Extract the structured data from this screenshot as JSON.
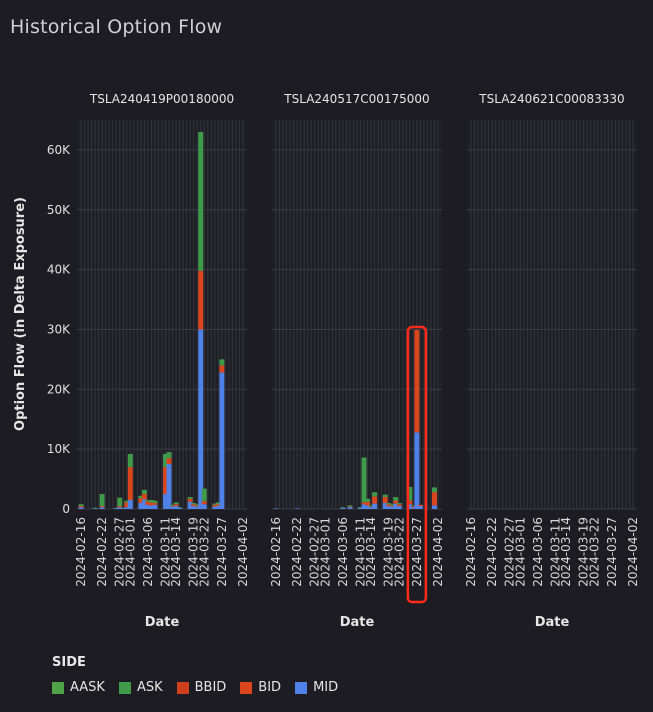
{
  "page": {
    "title": "Historical Option Flow"
  },
  "legend": {
    "title": "SIDE",
    "items": [
      {
        "label": "AASK",
        "color": "#4fa24a"
      },
      {
        "label": "ASK",
        "color": "#3f9a4a"
      },
      {
        "label": "BBID",
        "color": "#cf4020"
      },
      {
        "label": "BID",
        "color": "#d9461e"
      },
      {
        "label": "MID",
        "color": "#4f81e6"
      }
    ]
  },
  "chart_data": {
    "type": "bar",
    "stacked": true,
    "ylabel": "Option Flow (in Delta Exposure)",
    "xlabel": "Date",
    "ylim": [
      0,
      65000
    ],
    "yticks": [
      0,
      10000,
      20000,
      30000,
      40000,
      50000,
      60000
    ],
    "ytick_labels": [
      "0",
      "10K",
      "20K",
      "30K",
      "40K",
      "50K",
      "60K"
    ],
    "xtick_labels": [
      "2024-02-16",
      "2024-02-22",
      "2024-02-27",
      "2024-03-01",
      "2024-03-06",
      "2024-03-11",
      "2024-03-14",
      "2024-03-19",
      "2024-03-22",
      "2024-03-27",
      "2024-04-02"
    ],
    "grid": true,
    "legend_position": "bottom",
    "series_order": [
      "MID",
      "BID",
      "BBID",
      "ASK",
      "AASK"
    ],
    "colors": {
      "MID": "#4f81e6",
      "BID": "#d9461e",
      "BBID": "#cf4020",
      "ASK": "#3f9a4a",
      "AASK": "#4fa24a"
    },
    "panels": [
      {
        "title": "TSLA240419P00180000",
        "bars": [
          {
            "x": "2024-02-16",
            "MID": 300,
            "BID": 200,
            "ASK": 300
          },
          {
            "x": "2024-02-20",
            "MID": 100,
            "ASK": 100
          },
          {
            "x": "2024-02-22",
            "MID": 300,
            "BID": 200,
            "ASK": 2000
          },
          {
            "x": "2024-02-26",
            "MID": 100,
            "ASK": 100
          },
          {
            "x": "2024-02-27",
            "MID": 300,
            "BID": 200,
            "ASK": 1400
          },
          {
            "x": "2024-02-28",
            "MID": 100,
            "ASK": 100
          },
          {
            "x": "2024-02-29",
            "MID": 300,
            "BID": 800,
            "ASK": 300
          },
          {
            "x": "2024-03-01",
            "MID": 1500,
            "BID": 5500,
            "ASK": 2200
          },
          {
            "x": "2024-03-04",
            "MID": 1000,
            "BID": 800,
            "ASK": 400
          },
          {
            "x": "2024-03-05",
            "MID": 1600,
            "BID": 900,
            "ASK": 700
          },
          {
            "x": "2024-03-06",
            "MID": 700,
            "BID": 600,
            "ASK": 200
          },
          {
            "x": "2024-03-07",
            "MID": 600,
            "BID": 500,
            "ASK": 400
          },
          {
            "x": "2024-03-08",
            "MID": 700,
            "BID": 300,
            "ASK": 400
          },
          {
            "x": "2024-03-11",
            "MID": 2500,
            "BID": 4500,
            "ASK": 2200
          },
          {
            "x": "2024-03-12",
            "MID": 7500,
            "BID": 1000,
            "ASK": 1000
          },
          {
            "x": "2024-03-13",
            "MID": 400,
            "BID": 100,
            "ASK": 200
          },
          {
            "x": "2024-03-14",
            "MID": 500,
            "BID": 300,
            "ASK": 300
          },
          {
            "x": "2024-03-15",
            "MID": 200,
            "ASK": 100
          },
          {
            "x": "2024-03-18",
            "MID": 1200,
            "BID": 500,
            "ASK": 300
          },
          {
            "x": "2024-03-19",
            "MID": 500,
            "BID": 300,
            "ASK": 200
          },
          {
            "x": "2024-03-20",
            "MID": 400,
            "BID": 200,
            "ASK": 200
          },
          {
            "x": "2024-03-21",
            "MID": 30000,
            "BID": 9800,
            "ASK": 23200
          },
          {
            "x": "2024-03-22",
            "MID": 800,
            "BID": 500,
            "ASK": 2100
          },
          {
            "x": "2024-03-25",
            "MID": 400,
            "BID": 300,
            "ASK": 200
          },
          {
            "x": "2024-03-26",
            "MID": 500,
            "BID": 300,
            "ASK": 300
          },
          {
            "x": "2024-03-27",
            "MID": 22800,
            "BID": 1200,
            "ASK": 1000
          }
        ]
      },
      {
        "title": "TSLA240517C00175000",
        "bars": [
          {
            "x": "2024-02-16",
            "MID": 100
          },
          {
            "x": "2024-02-22",
            "MID": 100
          },
          {
            "x": "2024-03-06",
            "MID": 200,
            "ASK": 100
          },
          {
            "x": "2024-03-08",
            "MID": 300,
            "BID": 100,
            "ASK": 200
          },
          {
            "x": "2024-03-11",
            "MID": 200,
            "ASK": 100
          },
          {
            "x": "2024-03-12",
            "MID": 800,
            "BID": 300,
            "ASK": 7500
          },
          {
            "x": "2024-03-13",
            "MID": 600,
            "BID": 600,
            "ASK": 500
          },
          {
            "x": "2024-03-14",
            "MID": 300,
            "BID": 100,
            "ASK": 200
          },
          {
            "x": "2024-03-15",
            "MID": 900,
            "BID": 1200,
            "ASK": 700
          },
          {
            "x": "2024-03-18",
            "MID": 1000,
            "BID": 1000,
            "ASK": 400
          },
          {
            "x": "2024-03-19",
            "MID": 500,
            "BID": 300,
            "ASK": 200
          },
          {
            "x": "2024-03-20",
            "MID": 400,
            "BID": 200,
            "ASK": 200
          },
          {
            "x": "2024-03-21",
            "MID": 900,
            "BID": 500,
            "ASK": 600
          },
          {
            "x": "2024-03-22",
            "MID": 500,
            "BID": 300,
            "ASK": 200
          },
          {
            "x": "2024-03-25",
            "MID": 800,
            "BID": 600,
            "ASK": 2300
          },
          {
            "x": "2024-03-26",
            "MID": 300,
            "BID": 200,
            "ASK": 100
          },
          {
            "x": "2024-03-27",
            "MID": 12800,
            "BID": 17100
          },
          {
            "x": "2024-03-28",
            "MID": 500,
            "BID": 200
          },
          {
            "x": "2024-04-01",
            "MID": 600,
            "BID": 2200,
            "ASK": 800
          }
        ],
        "highlight": {
          "x": "2024-03-27",
          "color": "#ff2a1a"
        }
      },
      {
        "title": "TSLA240621C00083330",
        "bars": []
      }
    ]
  }
}
